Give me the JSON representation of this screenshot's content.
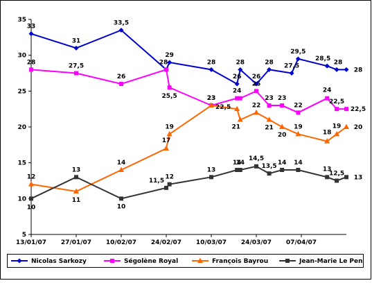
{
  "chart_data": {
    "type": "line",
    "title": "",
    "xlabel": "",
    "ylabel": "",
    "ylim": [
      5,
      35
    ],
    "yticks": [
      "5",
      "10",
      "15",
      "20",
      "25",
      "30",
      "35"
    ],
    "xlim": [
      "2007-01-13",
      "2007-04-21"
    ],
    "xticks": [
      "13/01/07",
      "27/01/07",
      "10/02/07",
      "24/02/07",
      "10/03/07",
      "24/03/07",
      "07/04/07"
    ],
    "grid": false,
    "legend_position": "bottom",
    "series": [
      {
        "name": "Nicolas Sarkozy",
        "color": "#0000cc",
        "marker": "diamond",
        "points": [
          [
            "2007-01-13",
            33
          ],
          [
            "2007-01-27",
            31
          ],
          [
            "2007-02-10",
            33.5
          ],
          [
            "2007-02-24",
            28
          ],
          [
            "2007-02-25",
            29
          ],
          [
            "2007-03-10",
            28
          ],
          [
            "2007-03-18",
            26
          ],
          [
            "2007-03-19",
            28
          ],
          [
            "2007-03-24",
            26
          ],
          [
            "2007-03-28",
            28
          ],
          [
            "2007-04-04",
            27.5
          ],
          [
            "2007-04-06",
            29.5
          ],
          [
            "2007-04-15",
            28.5
          ],
          [
            "2007-04-18",
            28
          ],
          [
            "2007-04-21",
            28
          ]
        ],
        "labels": [
          "33",
          "31",
          "33,5",
          "",
          "29",
          "28",
          "26",
          "28",
          "26",
          "28",
          "27,5",
          "29,5",
          "28,5",
          "28",
          "28"
        ]
      },
      {
        "name": "Ségolène Royal",
        "color": "#ff00ff",
        "marker": "square",
        "points": [
          [
            "2007-01-13",
            28
          ],
          [
            "2007-01-27",
            27.5
          ],
          [
            "2007-02-10",
            26
          ],
          [
            "2007-02-24",
            28
          ],
          [
            "2007-02-25",
            25.5
          ],
          [
            "2007-03-10",
            23
          ],
          [
            "2007-03-18",
            24
          ],
          [
            "2007-03-19",
            24
          ],
          [
            "2007-03-24",
            25
          ],
          [
            "2007-03-28",
            23
          ],
          [
            "2007-04-01",
            23
          ],
          [
            "2007-04-06",
            22
          ],
          [
            "2007-04-15",
            24
          ],
          [
            "2007-04-18",
            22.5
          ],
          [
            "2007-04-21",
            22.5
          ]
        ],
        "labels": [
          "28",
          "27,5",
          "26",
          "28",
          "25,5",
          "23",
          "24",
          "",
          "25",
          "23",
          "23",
          "22",
          "24",
          "22,5",
          "22,5"
        ]
      },
      {
        "name": "François Bayrou",
        "color": "#ff6600",
        "marker": "triangle",
        "points": [
          [
            "2007-01-13",
            12
          ],
          [
            "2007-01-27",
            11
          ],
          [
            "2007-02-10",
            14
          ],
          [
            "2007-02-24",
            17
          ],
          [
            "2007-02-25",
            19
          ],
          [
            "2007-03-10",
            23
          ],
          [
            "2007-03-18",
            22.5
          ],
          [
            "2007-03-19",
            21
          ],
          [
            "2007-03-24",
            22
          ],
          [
            "2007-03-28",
            21
          ],
          [
            "2007-04-01",
            20
          ],
          [
            "2007-04-06",
            19
          ],
          [
            "2007-04-15",
            18
          ],
          [
            "2007-04-18",
            19
          ],
          [
            "2007-04-21",
            20
          ]
        ],
        "labels": [
          "12",
          "11",
          "14",
          "17",
          "19",
          "23",
          "22,5",
          "21",
          "22",
          "21",
          "20",
          "19",
          "18",
          "19",
          "20"
        ]
      },
      {
        "name": "Jean-Marie Le Pen",
        "color": "#333333",
        "marker": "square",
        "points": [
          [
            "2007-01-13",
            10
          ],
          [
            "2007-01-27",
            13
          ],
          [
            "2007-02-10",
            10
          ],
          [
            "2007-02-24",
            11.5
          ],
          [
            "2007-02-25",
            12
          ],
          [
            "2007-03-10",
            13
          ],
          [
            "2007-03-18",
            14
          ],
          [
            "2007-03-19",
            14
          ],
          [
            "2007-03-24",
            14.5
          ],
          [
            "2007-03-28",
            13.5
          ],
          [
            "2007-04-01",
            14
          ],
          [
            "2007-04-06",
            14
          ],
          [
            "2007-04-15",
            13
          ],
          [
            "2007-04-18",
            12.5
          ],
          [
            "2007-04-21",
            13
          ]
        ],
        "labels": [
          "10",
          "13",
          "10",
          "11,5",
          "12",
          "13",
          "14",
          "14",
          "14,5",
          "13,5",
          "14",
          "14",
          "13",
          "12,5",
          "13"
        ]
      }
    ]
  }
}
